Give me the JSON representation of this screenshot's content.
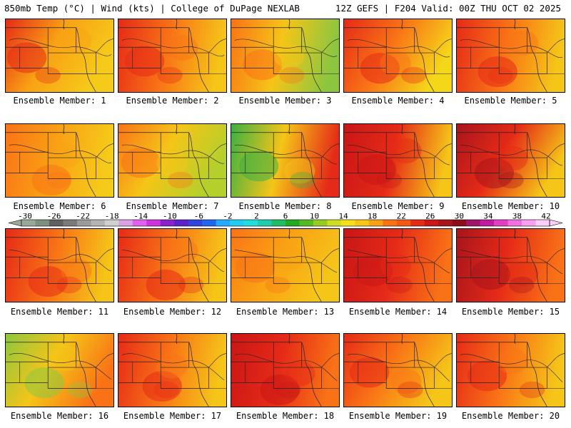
{
  "header": {
    "left": "850mb Temp (°C) | Wind (kts) | College of DuPage NEXLAB",
    "right": "12Z GEFS | F204 Valid: 00Z THU OCT 02 2025"
  },
  "label_prefix": "Ensemble Member: ",
  "members": [
    {
      "id": "1",
      "palette": [
        "#e52a17",
        "#f9a114",
        "#f5cb1a"
      ]
    },
    {
      "id": "2",
      "palette": [
        "#e52a17",
        "#f97316",
        "#f5c518"
      ]
    },
    {
      "id": "3",
      "palette": [
        "#f97316",
        "#f5c518",
        "#8cc63f"
      ]
    },
    {
      "id": "4",
      "palette": [
        "#e52a17",
        "#f97316",
        "#f5d71a"
      ]
    },
    {
      "id": "5",
      "palette": [
        "#e52a17",
        "#f97316",
        "#f5c518"
      ]
    },
    {
      "id": "6",
      "palette": [
        "#f97316",
        "#f9a114",
        "#f5cb1a"
      ]
    },
    {
      "id": "7",
      "palette": [
        "#f97316",
        "#f5c518",
        "#b5cf2b"
      ]
    },
    {
      "id": "8",
      "palette": [
        "#3cb043",
        "#f5c518",
        "#e52a17"
      ]
    },
    {
      "id": "9",
      "palette": [
        "#c91616",
        "#e52a17",
        "#f5c518"
      ]
    },
    {
      "id": "10",
      "palette": [
        "#a8141c",
        "#e52a17",
        "#f5c518"
      ]
    },
    {
      "id": "11",
      "palette": [
        "#e52a17",
        "#f97316",
        "#f5c518"
      ]
    },
    {
      "id": "12",
      "palette": [
        "#e52a17",
        "#f97316",
        "#f5c518"
      ]
    },
    {
      "id": "13",
      "palette": [
        "#f97316",
        "#f9a114",
        "#f5c518"
      ]
    },
    {
      "id": "14",
      "palette": [
        "#c91616",
        "#e52a17",
        "#f97316"
      ]
    },
    {
      "id": "15",
      "palette": [
        "#a8141c",
        "#e52a17",
        "#f97316"
      ]
    },
    {
      "id": "16",
      "palette": [
        "#8cc63f",
        "#f5c518",
        "#f97316"
      ]
    },
    {
      "id": "17",
      "palette": [
        "#e52a17",
        "#f97316",
        "#f5c518"
      ]
    },
    {
      "id": "18",
      "palette": [
        "#c91616",
        "#e52a17",
        "#f97316"
      ]
    },
    {
      "id": "19",
      "palette": [
        "#e52a17",
        "#f97316",
        "#f5c518"
      ]
    },
    {
      "id": "20",
      "palette": [
        "#e52a17",
        "#f97316",
        "#f5c518"
      ]
    }
  ],
  "colorbar": {
    "tick_labels": [
      "-30",
      "-26",
      "-22",
      "-18",
      "-14",
      "-10",
      "-6",
      "-2",
      "2",
      "6",
      "10",
      "14",
      "18",
      "22",
      "26",
      "30",
      "34",
      "38",
      "42"
    ],
    "colors": [
      "#9aa89a",
      "#7f8f7f",
      "#606060",
      "#7a7a7a",
      "#9b9b9b",
      "#b4b4b4",
      "#d0d0d0",
      "#d9a0e6",
      "#e060f0",
      "#cc33dd",
      "#8822cc",
      "#5a22c8",
      "#3344dd",
      "#2266ee",
      "#22aaff",
      "#22ccee",
      "#22dddd",
      "#22ccaa",
      "#22bb66",
      "#22aa22",
      "#55bb22",
      "#99cc22",
      "#ccdd22",
      "#f5e01a",
      "#f5c518",
      "#f9a114",
      "#f97316",
      "#f25a14",
      "#e52a17",
      "#c91616",
      "#a8141c",
      "#8b0f1a",
      "#a0146a",
      "#c21aa0",
      "#e040c0",
      "#f070e0",
      "#f8a0f0",
      "#fbd0f8"
    ]
  }
}
